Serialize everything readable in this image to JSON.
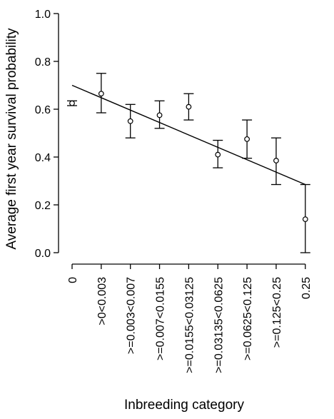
{
  "chart_data": {
    "type": "scatter",
    "title": "",
    "xlabel": "Inbreeding category",
    "ylabel": "Average first year survival probability",
    "categories": [
      "0",
      ">0<0.003",
      ">=0.003<0.007",
      ">=0.007<0.0155",
      ">=0.0155<0.03125",
      ">=0.03135<0.0625",
      ">=0.0625<0.125",
      ">=0.125<0.25",
      "0.25"
    ],
    "ylim": [
      0,
      1
    ],
    "yticks": [
      "0.0",
      "0.2",
      "0.4",
      "0.6",
      "0.8",
      "1.0"
    ],
    "series": [
      {
        "values": [
          0.625,
          0.665,
          0.55,
          0.575,
          0.61,
          0.41,
          0.475,
          0.385,
          0.14
        ],
        "lower": [
          0.615,
          0.585,
          0.48,
          0.52,
          0.555,
          0.355,
          0.395,
          0.285,
          0.0
        ],
        "upper": [
          0.635,
          0.75,
          0.62,
          0.635,
          0.665,
          0.47,
          0.555,
          0.48,
          0.285
        ]
      }
    ],
    "trendline": {
      "start": 0.7,
      "end": 0.285
    },
    "grid": false,
    "legend": "none"
  }
}
